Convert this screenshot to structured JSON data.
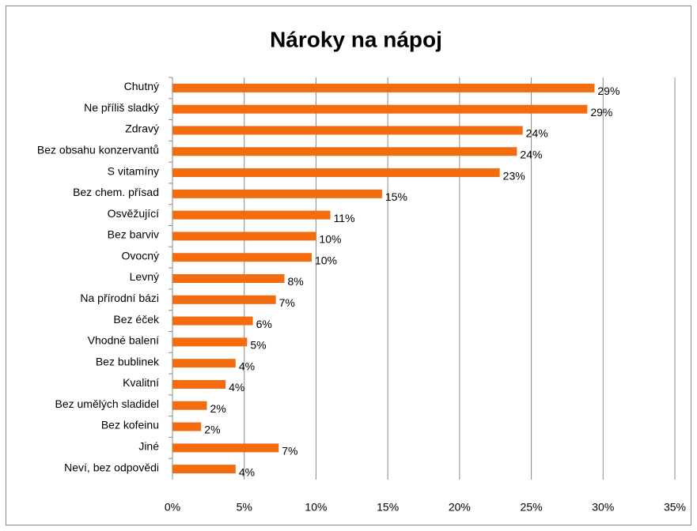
{
  "chart_data": {
    "type": "barh",
    "title": "Nároky na nápoj",
    "categories": [
      "Chutný",
      "Ne příliš sladký",
      "Zdravý",
      "Bez obsahu konzervantů",
      "S vitamíny",
      "Bez chem. přísad",
      "Osvěžující",
      "Bez barviv",
      "Ovocný",
      "Levný",
      "Na přírodní bázi",
      "Bez éček",
      "Vhodné balení",
      "Bez bublinek",
      "Kvalitní",
      "Bez umělých sladidel",
      "Bez kofeinu",
      "Jiné",
      "Neví, bez odpovědi"
    ],
    "values": [
      29.4,
      28.9,
      24.4,
      24.0,
      22.8,
      14.6,
      11.0,
      10.0,
      9.7,
      7.8,
      7.2,
      5.6,
      5.2,
      4.4,
      3.7,
      2.4,
      2.0,
      7.4,
      4.4
    ],
    "value_labels": [
      "29%",
      "29%",
      "24%",
      "24%",
      "23%",
      "15%",
      "11%",
      "10%",
      "10%",
      "8%",
      "7%",
      "6%",
      "5%",
      "4%",
      "4%",
      "2%",
      "2%",
      "7%",
      "4%"
    ],
    "color": "#f36c10",
    "xlim": [
      0,
      35
    ],
    "xticks": [
      {
        "value": 0,
        "label": "0%"
      },
      {
        "value": 5,
        "label": "5%"
      },
      {
        "value": 10,
        "label": "10%"
      },
      {
        "value": 15,
        "label": "15%"
      },
      {
        "value": 20,
        "label": "20%"
      },
      {
        "value": 25,
        "label": "25%"
      },
      {
        "value": 30,
        "label": "30%"
      },
      {
        "value": 35,
        "label": "35%"
      }
    ],
    "grid": true
  }
}
